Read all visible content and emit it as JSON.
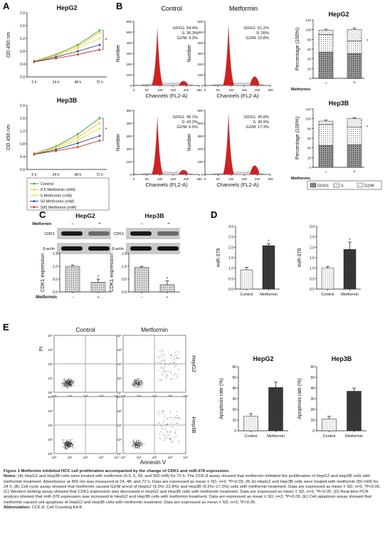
{
  "panels": {
    "A": {
      "letter": "A",
      "charts": [
        {
          "title": "HepG2",
          "ylabel": "OD 450 nm",
          "sig": "*"
        },
        {
          "title": "Hep3B",
          "ylabel": "OD 450 nm",
          "sig": "*"
        }
      ],
      "x_ticks": [
        "0 h",
        "24 h",
        "48 h",
        "72 h"
      ],
      "y_ticks": [
        "0.0",
        "0.4",
        "0.8",
        "1.2",
        "1.6",
        "2.0"
      ],
      "legend": [
        "Control",
        "0.5 Metformin (mM)",
        "5 Metformin (mM)",
        "50 Metformin (mM)",
        "500 Metformin (mM)"
      ],
      "series_colors": [
        "#2e9e3a",
        "#f2c230",
        "#e6e040",
        "#2a3b8f",
        "#c0392b"
      ]
    },
    "B": {
      "letter": "B",
      "columns": [
        "Control",
        "Metformin"
      ],
      "rows": [
        {
          "cell_line": "HepG2",
          "control": {
            "g0g1": "G0/G1: 54.4%",
            "s": "S: 36.3%",
            "g2m": "G2/M: 9.3%"
          },
          "metformin": {
            "g0g1": "G0/G1: 51.2%",
            "s": "S: 26%",
            "g2m": "G2/M: 22.8%"
          }
        },
        {
          "cell_line": "Hep3B",
          "control": {
            "g0g1": "G0/G1: 45.1%",
            "s": "S: 43.2%",
            "g2m": "G2/M: 6.5%"
          },
          "metformin": {
            "g0g1": "G0/G1: 45.8%",
            "s": "S: 36.9%",
            "g2m": "G2/M: 17.3%"
          }
        }
      ],
      "hist_ylabel": "Number",
      "hist_xlabel": "Channels (FL2-A)",
      "hist_x_ticks": [
        "0",
        "50",
        "100",
        "150",
        "200",
        "250"
      ],
      "hist_y_ticks_top": [
        "0",
        "100",
        "200",
        "300",
        "400",
        "500",
        "600"
      ],
      "hist_y_ticks_bottom": [
        "0",
        "100",
        "200",
        "300",
        "400",
        "500"
      ],
      "bar_ylabel": "Percentage (100%)",
      "bar_y_ticks": [
        "0",
        "20",
        "40",
        "60",
        "80",
        "100",
        "120"
      ],
      "bar_x_label": "Metformin",
      "bar_x_ticks": [
        "–",
        "+"
      ],
      "bar_titles": [
        "HepG2",
        "Hep3B"
      ],
      "bar_sig": "*",
      "bar_legend": [
        "G0/G1",
        "S",
        "G2/M"
      ]
    },
    "C": {
      "letter": "C",
      "blots": [
        {
          "title": "HepG2",
          "bands": [
            "CDK1",
            "β-actin"
          ]
        },
        {
          "title": "Hep3B",
          "bands": [
            "CDK1",
            "β-actin"
          ]
        }
      ],
      "treatment_label": "Metformin",
      "lane_signs": [
        "–",
        "+"
      ],
      "ylabel": "CDK1 expression",
      "y_ticks": [
        "0.0",
        "0.5",
        "1.0",
        "1.5"
      ],
      "x_label": "Metformin",
      "x_ticks": [
        "–",
        "+"
      ],
      "sig": "*"
    },
    "D": {
      "letter": "D",
      "ylabel": "miR-378",
      "y_ticks": [
        "0.0",
        "0.5",
        "1.0",
        "1.5",
        "2.0",
        "2.5",
        "3.0"
      ],
      "categories": [
        "Control",
        "Metformin"
      ],
      "sig": "*"
    },
    "E": {
      "letter": "E",
      "columns": [
        "Control",
        "Metformin"
      ],
      "row_labels": [
        "HepG2",
        "Hep3B"
      ],
      "ylabel": "PI",
      "xlabel": "Annexin V",
      "decade_ticks": [
        "10⁰",
        "10¹",
        "10²",
        "10³",
        "10⁴"
      ],
      "bar_titles": [
        "HepG2",
        "Hep3B"
      ],
      "bar_ylabel": "Apoptosis rate (%)",
      "bar_y_ticks": [
        "0",
        "10",
        "20",
        "30",
        "40",
        "50",
        "60"
      ],
      "bar_categories": [
        "Control",
        "Metformin"
      ]
    }
  },
  "chart_data": [
    {
      "type": "line",
      "title": "HepG2",
      "x": [
        "0 h",
        "24 h",
        "48 h",
        "72 h"
      ],
      "ylabel": "OD 450 nm",
      "ylim": [
        0,
        2.0
      ],
      "series": [
        {
          "name": "Control",
          "values": [
            0.5,
            0.7,
            1.0,
            1.45
          ]
        },
        {
          "name": "0.5 Metformin (mM)",
          "values": [
            0.5,
            0.68,
            0.95,
            1.38
          ]
        },
        {
          "name": "5 Metformin (mM)",
          "values": [
            0.5,
            0.65,
            0.9,
            1.2
          ]
        },
        {
          "name": "50 Metformin (mM)",
          "values": [
            0.48,
            0.62,
            0.8,
            1.0
          ]
        },
        {
          "name": "500 Metformin (mM)",
          "values": [
            0.47,
            0.58,
            0.7,
            0.85
          ]
        }
      ]
    },
    {
      "type": "line",
      "title": "Hep3B",
      "x": [
        "0 h",
        "24 h",
        "48 h",
        "72 h"
      ],
      "ylabel": "OD 450 nm",
      "ylim": [
        0,
        2.0
      ],
      "series": [
        {
          "name": "Control",
          "values": [
            0.5,
            0.72,
            1.1,
            1.6
          ]
        },
        {
          "name": "0.5 Metformin (mM)",
          "values": [
            0.5,
            0.7,
            1.0,
            1.45
          ]
        },
        {
          "name": "5 Metformin (mM)",
          "values": [
            0.5,
            0.66,
            0.92,
            1.28
          ]
        },
        {
          "name": "50 Metformin (mM)",
          "values": [
            0.48,
            0.62,
            0.82,
            1.05
          ]
        },
        {
          "name": "500 Metformin (mM)",
          "values": [
            0.47,
            0.58,
            0.7,
            0.9
          ]
        }
      ]
    },
    {
      "type": "bar",
      "title": "HepG2",
      "categories": [
        "–",
        "+"
      ],
      "xlabel": "Metformin",
      "ylabel": "Percentage (100%)",
      "ylim": [
        0,
        120
      ],
      "series": [
        {
          "name": "G0/G1",
          "values": [
            54,
            51
          ],
          "errors": [
            3,
            3
          ]
        },
        {
          "name": "S",
          "values": [
            36,
            26
          ],
          "errors": [
            3,
            3
          ]
        },
        {
          "name": "G2/M",
          "values": [
            9,
            23
          ],
          "errors": [
            2,
            3
          ]
        }
      ]
    },
    {
      "type": "bar",
      "title": "Hep3B",
      "categories": [
        "–",
        "+"
      ],
      "xlabel": "Metformin",
      "ylabel": "Percentage (100%)",
      "ylim": [
        0,
        120
      ],
      "series": [
        {
          "name": "G0/G1",
          "values": [
            45,
            46
          ],
          "errors": [
            3,
            3
          ]
        },
        {
          "name": "S",
          "values": [
            43,
            37
          ],
          "errors": [
            3,
            3
          ]
        },
        {
          "name": "G2/M",
          "values": [
            7,
            17
          ],
          "errors": [
            2,
            2
          ]
        }
      ]
    },
    {
      "type": "bar",
      "title": "HepG2",
      "categories": [
        "–",
        "+"
      ],
      "xlabel": "Metformin",
      "ylabel": "CDK1 expression",
      "ylim": [
        0,
        1.5
      ],
      "values": [
        1.0,
        0.38
      ],
      "errors": [
        0.05,
        0.12
      ]
    },
    {
      "type": "bar",
      "title": "Hep3B",
      "categories": [
        "–",
        "+"
      ],
      "xlabel": "Metformin",
      "ylabel": "CDK1 expression",
      "ylim": [
        0,
        1.5
      ],
      "values": [
        0.95,
        0.28
      ],
      "errors": [
        0.05,
        0.15
      ]
    },
    {
      "type": "bar",
      "categories": [
        "Control",
        "Metformin"
      ],
      "ylabel": "miR-378",
      "ylim": [
        0,
        3.0
      ],
      "values": [
        0.92,
        2.08
      ],
      "errors": [
        0.12,
        0.1
      ]
    },
    {
      "type": "bar",
      "categories": [
        "Control",
        "Metformin"
      ],
      "ylabel": "miR-378",
      "ylim": [
        0,
        3.0
      ],
      "values": [
        1.0,
        1.9
      ],
      "errors": [
        0.08,
        0.35
      ]
    },
    {
      "type": "bar",
      "title": "HepG2",
      "categories": [
        "Control",
        "Metformin"
      ],
      "ylabel": "Apoptosis rate (%)",
      "ylim": [
        0,
        60
      ],
      "values": [
        13.5,
        40.5
      ],
      "errors": [
        2.5,
        5
      ]
    },
    {
      "type": "bar",
      "title": "Hep3B",
      "categories": [
        "Control",
        "Metformin"
      ],
      "ylabel": "Apoptosis rate (%)",
      "ylim": [
        0,
        60
      ],
      "values": [
        11,
        37
      ],
      "errors": [
        2.5,
        3
      ]
    }
  ],
  "caption": {
    "title": "Figure 1 Metformin inhibited HCC cell proliferation accompanied by the change of CDK1 and miR-378 expression.",
    "notes_label": "Notes:",
    "notes": "(A) HepG2 and Hep3B cells were treated with metformin (0.5, 5, 50, and 500 mM) for 72 h. The CCK-8 assay showed that metformin inhibited the proliferation of HepG2 and Hep3B cells with metformin treatment. Absorbance at 450 nm was measured at 24, 48, and 72 h. Data are expressed as mean ± SD, n=3, *P<0.05. (B–E) HepG2 and Hep3B cells were treated with metformin (50 mM) for 24 h. (B) Cell cycle assay showed that metformin caused G2/M arrest of HepG2 (9.3%–22.8%) and Hep3B (6.5%–17.3%) cells with metformin treatment. Data are expressed as mean ± SD, n=3, *P<0.05. (C) Western blotting assay showed that CDK1 expression was decreased in HepG2 and Hep3B cells with metformin treatment. Data are expressed as mean ± SD, n=3, *P<0.05. (D) Real-time PCR analysis showed that miR-378 expression was increased in HepG2 and Hep3B cells with metformin treatment. Data are expressed as mean ± SD, n=3, *P<0.05. (E) Cell apoptosis assay showed that metformin caused cell apoptosis of HepG2 and Hep3B cells with metformin treatment. Data are expressed as mean ± SD, n=3, *P<0.05.",
    "abbrev_label": "Abbreviation:",
    "abbrev": "CCK-8, Cell Counting Kit-8."
  }
}
